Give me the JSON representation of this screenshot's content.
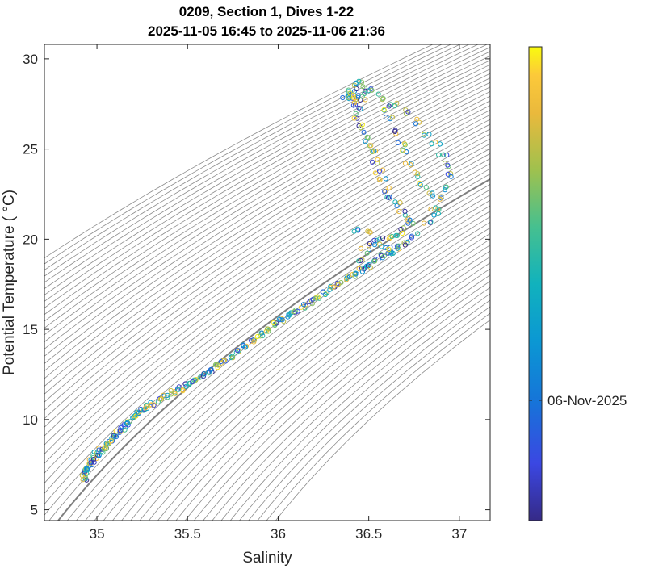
{
  "chart_data": {
    "type": "scatter",
    "title_lines": [
      "0209, Section 1, Dives 1-22",
      "2025-11-05 16:45 to 2025-11-06 21:36"
    ],
    "xlabel": "Salinity",
    "ylabel": "Potential Temperature ( °C)",
    "xlim": [
      34.71,
      37.17
    ],
    "ylim": [
      4.4,
      30.8
    ],
    "xticks": [
      35,
      35.5,
      36,
      36.5,
      37
    ],
    "xtick_labels": [
      "35",
      "35.5",
      "36",
      "36.5",
      "37"
    ],
    "yticks": [
      5,
      10,
      15,
      20,
      25,
      30
    ],
    "ytick_labels": [
      "5",
      "10",
      "15",
      "20",
      "25",
      "30"
    ],
    "grid": false,
    "marker": "open circle",
    "density_contours": {
      "color": "#8c8c8c",
      "highlighted_color": "#7f7f7f",
      "reference_offsets": [
        -0.85,
        -0.8,
        -0.75,
        -0.7,
        -0.65,
        -0.6,
        -0.55,
        -0.5,
        -0.45,
        -0.4,
        -0.35,
        -0.3,
        -0.25,
        -0.2,
        -0.15,
        -0.1,
        -0.05,
        0,
        0.05,
        0.1,
        0.15,
        0.2,
        0.25,
        0.3,
        0.35,
        0.4,
        0.45,
        0.5,
        0.55,
        0.6,
        0.65,
        0.7,
        0.75,
        0.8,
        0.85,
        0.9,
        0.95,
        1.0,
        1.05,
        1.1,
        1.15,
        1.2,
        1.25,
        1.3,
        1.35,
        1.4,
        1.45,
        1.5,
        1.55,
        1.6,
        1.65,
        1.7,
        1.75,
        1.8,
        1.85,
        1.9,
        1.95,
        2.0,
        2.05,
        2.1
      ],
      "highlighted_offset": 0.9
    },
    "colorbar": {
      "colormap": "parula",
      "tick_labels": [
        "06-Nov-2025"
      ],
      "tick_fraction": 0.26
    },
    "series": [
      {
        "name": "deep_profile",
        "points": [
          [
            34.93,
            6.7
          ],
          [
            34.93,
            6.9
          ],
          [
            34.94,
            7.1
          ],
          [
            34.95,
            7.3
          ],
          [
            34.96,
            7.5
          ],
          [
            34.97,
            7.7
          ],
          [
            34.99,
            7.9
          ],
          [
            35.0,
            8.1
          ],
          [
            35.02,
            8.3
          ],
          [
            35.04,
            8.5
          ],
          [
            35.06,
            8.7
          ],
          [
            35.08,
            8.9
          ],
          [
            35.1,
            9.1
          ],
          [
            35.12,
            9.3
          ],
          [
            35.14,
            9.5
          ],
          [
            35.16,
            9.7
          ],
          [
            35.18,
            9.9
          ],
          [
            35.2,
            10.1
          ],
          [
            35.22,
            10.3
          ],
          [
            35.25,
            10.5
          ],
          [
            35.28,
            10.7
          ],
          [
            35.31,
            10.9
          ],
          [
            35.35,
            11.1
          ],
          [
            35.38,
            11.3
          ],
          [
            35.42,
            11.5
          ],
          [
            35.46,
            11.7
          ],
          [
            35.5,
            11.95
          ],
          [
            35.54,
            12.2
          ],
          [
            35.58,
            12.45
          ],
          [
            35.62,
            12.7
          ],
          [
            35.66,
            12.95
          ],
          [
            35.7,
            13.2
          ],
          [
            35.74,
            13.5
          ],
          [
            35.78,
            13.8
          ],
          [
            35.82,
            14.1
          ],
          [
            35.86,
            14.4
          ],
          [
            35.9,
            14.7
          ],
          [
            35.94,
            15.0
          ],
          [
            35.98,
            15.3
          ],
          [
            36.02,
            15.55
          ],
          [
            36.06,
            15.8
          ],
          [
            36.1,
            16.05
          ],
          [
            36.14,
            16.3
          ],
          [
            36.18,
            16.55
          ],
          [
            36.22,
            16.8
          ],
          [
            36.26,
            17.05
          ],
          [
            36.3,
            17.3
          ],
          [
            36.34,
            17.55
          ],
          [
            36.38,
            17.8
          ],
          [
            36.42,
            18.05
          ],
          [
            36.46,
            18.3
          ],
          [
            36.5,
            18.55
          ],
          [
            36.54,
            18.8
          ],
          [
            36.58,
            19.05
          ],
          [
            36.62,
            19.3
          ],
          [
            36.66,
            19.55
          ],
          [
            36.7,
            19.8
          ]
        ]
      },
      {
        "name": "upper_profiles",
        "points": [
          [
            36.44,
            20.6
          ],
          [
            36.5,
            20.3
          ],
          [
            36.55,
            20.1
          ],
          [
            36.6,
            20.0
          ],
          [
            36.65,
            20.2
          ],
          [
            36.7,
            20.5
          ],
          [
            36.74,
            20.9
          ],
          [
            36.72,
            21.2
          ],
          [
            36.68,
            21.5
          ],
          [
            36.65,
            21.9
          ],
          [
            36.62,
            22.3
          ],
          [
            36.6,
            22.8
          ],
          [
            36.58,
            23.3
          ],
          [
            36.56,
            23.8
          ],
          [
            36.54,
            24.3
          ],
          [
            36.52,
            24.8
          ],
          [
            36.5,
            25.3
          ],
          [
            36.48,
            25.8
          ],
          [
            36.46,
            26.3
          ],
          [
            36.44,
            26.8
          ],
          [
            36.43,
            27.3
          ],
          [
            36.42,
            27.8
          ],
          [
            36.41,
            28.2
          ],
          [
            36.42,
            28.5
          ],
          [
            36.45,
            28.6
          ],
          [
            36.5,
            28.4
          ],
          [
            36.76,
            20.2
          ],
          [
            36.82,
            20.8
          ],
          [
            36.86,
            21.5
          ],
          [
            36.9,
            22.2
          ],
          [
            36.93,
            22.9
          ],
          [
            36.95,
            23.5
          ],
          [
            36.94,
            24.1
          ],
          [
            36.91,
            24.7
          ],
          [
            36.87,
            25.3
          ],
          [
            36.82,
            25.9
          ],
          [
            36.76,
            26.5
          ],
          [
            36.7,
            27.0
          ],
          [
            36.63,
            27.5
          ],
          [
            36.56,
            27.9
          ],
          [
            36.5,
            28.2
          ],
          [
            36.88,
            21.8
          ],
          [
            36.85,
            22.4
          ],
          [
            36.8,
            23.0
          ],
          [
            36.76,
            23.6
          ],
          [
            36.72,
            24.2
          ],
          [
            36.7,
            24.8
          ],
          [
            36.68,
            25.4
          ],
          [
            36.65,
            26.0
          ],
          [
            36.62,
            26.6
          ],
          [
            36.6,
            27.2
          ],
          [
            36.45,
            18.9
          ],
          [
            36.48,
            19.4
          ],
          [
            36.52,
            19.7
          ],
          [
            36.58,
            19.6
          ],
          [
            36.63,
            19.4
          ],
          [
            36.38,
            27.9
          ],
          [
            36.4,
            27.7
          ],
          [
            36.43,
            27.6
          ],
          [
            36.46,
            27.8
          ],
          [
            36.4,
            28.1
          ],
          [
            36.38,
            28.0
          ]
        ]
      }
    ]
  }
}
